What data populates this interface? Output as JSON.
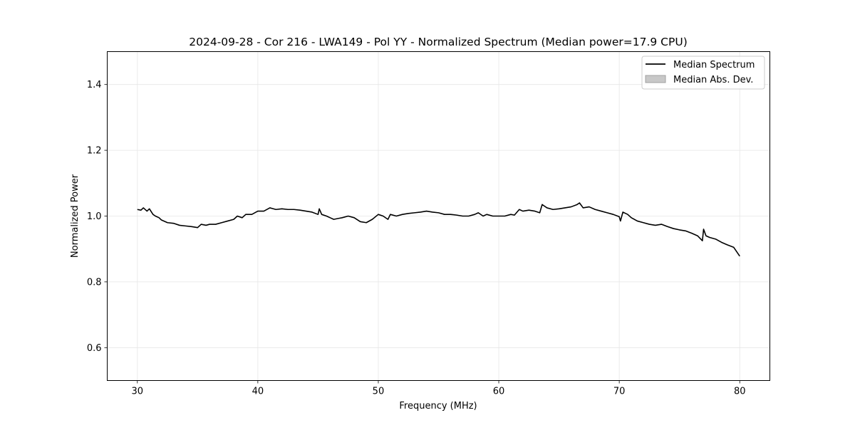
{
  "chart_data": {
    "type": "line",
    "title": "2024-09-28 - Cor 216 - LWA149 - Pol YY - Normalized Spectrum (Median power=17.9 CPU)",
    "xlabel": "Frequency (MHz)",
    "ylabel": "Normalized Power",
    "xlim": [
      27.5,
      82.5
    ],
    "ylim": [
      0.5,
      1.5
    ],
    "xticks": [
      {
        "value": 30,
        "label": "30"
      },
      {
        "value": 40,
        "label": "40"
      },
      {
        "value": 50,
        "label": "50"
      },
      {
        "value": 60,
        "label": "60"
      },
      {
        "value": 70,
        "label": "70"
      },
      {
        "value": 80,
        "label": "80"
      }
    ],
    "yticks": [
      {
        "value": 0.6,
        "label": "0.6"
      },
      {
        "value": 0.8,
        "label": "0.8"
      },
      {
        "value": 1.0,
        "label": "1.0"
      },
      {
        "value": 1.2,
        "label": "1.2"
      },
      {
        "value": 1.4,
        "label": "1.4"
      }
    ],
    "grid": true,
    "legend_position": "top-right",
    "legend": [
      {
        "label": "Median Spectrum",
        "kind": "line",
        "color": "#000000"
      },
      {
        "label": "Median Abs. Dev.",
        "kind": "patch",
        "color": "#c8c8c8"
      }
    ],
    "series": [
      {
        "name": "Median Spectrum",
        "color": "#000000",
        "x": [
          30.0,
          30.3,
          30.5,
          30.8,
          31.0,
          31.3,
          31.5,
          31.8,
          32.0,
          32.5,
          33.0,
          33.5,
          34.0,
          34.5,
          35.0,
          35.3,
          35.7,
          36.0,
          36.5,
          37.0,
          37.5,
          38.0,
          38.3,
          38.7,
          39.0,
          39.5,
          40.0,
          40.5,
          41.0,
          41.5,
          42.0,
          42.5,
          43.0,
          43.5,
          44.0,
          44.5,
          45.0,
          45.1,
          45.3,
          45.7,
          46.0,
          46.3,
          46.7,
          47.0,
          47.5,
          48.0,
          48.5,
          49.0,
          49.5,
          50.0,
          50.4,
          50.8,
          51.0,
          51.5,
          52.0,
          52.5,
          53.0,
          53.5,
          54.0,
          54.5,
          55.0,
          55.5,
          56.0,
          56.5,
          57.0,
          57.5,
          58.0,
          58.3,
          58.7,
          59.0,
          59.5,
          60.0,
          60.5,
          61.0,
          61.3,
          61.7,
          62.0,
          62.5,
          63.0,
          63.4,
          63.6,
          64.0,
          64.5,
          65.0,
          65.5,
          66.0,
          66.5,
          66.7,
          67.0,
          67.5,
          68.0,
          68.5,
          69.0,
          69.5,
          70.0,
          70.1,
          70.3,
          70.7,
          71.0,
          71.5,
          72.0,
          72.5,
          73.0,
          73.5,
          74.0,
          74.5,
          75.0,
          75.5,
          76.0,
          76.5,
          76.9,
          77.0,
          77.2,
          77.5,
          78.0,
          78.5,
          79.0,
          79.5,
          80.0
        ],
        "y": [
          1.02,
          1.018,
          1.025,
          1.015,
          1.022,
          1.005,
          1.0,
          0.995,
          0.988,
          0.98,
          0.978,
          0.972,
          0.97,
          0.968,
          0.965,
          0.975,
          0.972,
          0.975,
          0.975,
          0.98,
          0.985,
          0.99,
          1.0,
          0.995,
          1.005,
          1.005,
          1.015,
          1.015,
          1.025,
          1.02,
          1.022,
          1.02,
          1.02,
          1.018,
          1.015,
          1.012,
          1.005,
          1.022,
          1.005,
          1.0,
          0.995,
          0.99,
          0.993,
          0.995,
          1.0,
          0.995,
          0.983,
          0.98,
          0.99,
          1.005,
          1.0,
          0.99,
          1.005,
          1.0,
          1.005,
          1.008,
          1.01,
          1.012,
          1.015,
          1.012,
          1.01,
          1.005,
          1.005,
          1.003,
          1.0,
          1.0,
          1.005,
          1.01,
          1.0,
          1.005,
          1.0,
          1.0,
          1.0,
          1.005,
          1.003,
          1.02,
          1.015,
          1.018,
          1.015,
          1.01,
          1.035,
          1.025,
          1.02,
          1.022,
          1.025,
          1.028,
          1.035,
          1.04,
          1.025,
          1.028,
          1.02,
          1.015,
          1.01,
          1.005,
          0.998,
          0.985,
          1.012,
          1.005,
          0.995,
          0.985,
          0.98,
          0.975,
          0.972,
          0.975,
          0.968,
          0.962,
          0.958,
          0.955,
          0.948,
          0.94,
          0.925,
          0.96,
          0.94,
          0.935,
          0.93,
          0.92,
          0.912,
          0.905,
          0.878
        ]
      }
    ]
  }
}
